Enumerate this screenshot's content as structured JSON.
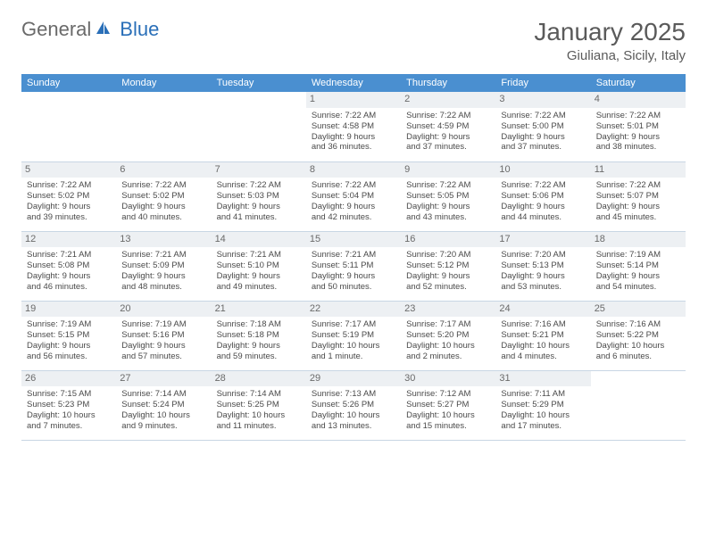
{
  "logo": {
    "part1": "General",
    "part2": "Blue"
  },
  "title": "January 2025",
  "location": "Giuliana, Sicily, Italy",
  "colors": {
    "header_bg": "#4a8fd0",
    "header_text": "#ffffff",
    "daynum_bg": "#edf0f3",
    "border": "#c8d6e4",
    "text": "#4a4a4a",
    "logo_blue": "#2a6fb8"
  },
  "weekdays": [
    "Sunday",
    "Monday",
    "Tuesday",
    "Wednesday",
    "Thursday",
    "Friday",
    "Saturday"
  ],
  "weeks": [
    [
      null,
      null,
      null,
      {
        "n": "1",
        "sr": "Sunrise: 7:22 AM",
        "ss": "Sunset: 4:58 PM",
        "d1": "Daylight: 9 hours",
        "d2": "and 36 minutes."
      },
      {
        "n": "2",
        "sr": "Sunrise: 7:22 AM",
        "ss": "Sunset: 4:59 PM",
        "d1": "Daylight: 9 hours",
        "d2": "and 37 minutes."
      },
      {
        "n": "3",
        "sr": "Sunrise: 7:22 AM",
        "ss": "Sunset: 5:00 PM",
        "d1": "Daylight: 9 hours",
        "d2": "and 37 minutes."
      },
      {
        "n": "4",
        "sr": "Sunrise: 7:22 AM",
        "ss": "Sunset: 5:01 PM",
        "d1": "Daylight: 9 hours",
        "d2": "and 38 minutes."
      }
    ],
    [
      {
        "n": "5",
        "sr": "Sunrise: 7:22 AM",
        "ss": "Sunset: 5:02 PM",
        "d1": "Daylight: 9 hours",
        "d2": "and 39 minutes."
      },
      {
        "n": "6",
        "sr": "Sunrise: 7:22 AM",
        "ss": "Sunset: 5:02 PM",
        "d1": "Daylight: 9 hours",
        "d2": "and 40 minutes."
      },
      {
        "n": "7",
        "sr": "Sunrise: 7:22 AM",
        "ss": "Sunset: 5:03 PM",
        "d1": "Daylight: 9 hours",
        "d2": "and 41 minutes."
      },
      {
        "n": "8",
        "sr": "Sunrise: 7:22 AM",
        "ss": "Sunset: 5:04 PM",
        "d1": "Daylight: 9 hours",
        "d2": "and 42 minutes."
      },
      {
        "n": "9",
        "sr": "Sunrise: 7:22 AM",
        "ss": "Sunset: 5:05 PM",
        "d1": "Daylight: 9 hours",
        "d2": "and 43 minutes."
      },
      {
        "n": "10",
        "sr": "Sunrise: 7:22 AM",
        "ss": "Sunset: 5:06 PM",
        "d1": "Daylight: 9 hours",
        "d2": "and 44 minutes."
      },
      {
        "n": "11",
        "sr": "Sunrise: 7:22 AM",
        "ss": "Sunset: 5:07 PM",
        "d1": "Daylight: 9 hours",
        "d2": "and 45 minutes."
      }
    ],
    [
      {
        "n": "12",
        "sr": "Sunrise: 7:21 AM",
        "ss": "Sunset: 5:08 PM",
        "d1": "Daylight: 9 hours",
        "d2": "and 46 minutes."
      },
      {
        "n": "13",
        "sr": "Sunrise: 7:21 AM",
        "ss": "Sunset: 5:09 PM",
        "d1": "Daylight: 9 hours",
        "d2": "and 48 minutes."
      },
      {
        "n": "14",
        "sr": "Sunrise: 7:21 AM",
        "ss": "Sunset: 5:10 PM",
        "d1": "Daylight: 9 hours",
        "d2": "and 49 minutes."
      },
      {
        "n": "15",
        "sr": "Sunrise: 7:21 AM",
        "ss": "Sunset: 5:11 PM",
        "d1": "Daylight: 9 hours",
        "d2": "and 50 minutes."
      },
      {
        "n": "16",
        "sr": "Sunrise: 7:20 AM",
        "ss": "Sunset: 5:12 PM",
        "d1": "Daylight: 9 hours",
        "d2": "and 52 minutes."
      },
      {
        "n": "17",
        "sr": "Sunrise: 7:20 AM",
        "ss": "Sunset: 5:13 PM",
        "d1": "Daylight: 9 hours",
        "d2": "and 53 minutes."
      },
      {
        "n": "18",
        "sr": "Sunrise: 7:19 AM",
        "ss": "Sunset: 5:14 PM",
        "d1": "Daylight: 9 hours",
        "d2": "and 54 minutes."
      }
    ],
    [
      {
        "n": "19",
        "sr": "Sunrise: 7:19 AM",
        "ss": "Sunset: 5:15 PM",
        "d1": "Daylight: 9 hours",
        "d2": "and 56 minutes."
      },
      {
        "n": "20",
        "sr": "Sunrise: 7:19 AM",
        "ss": "Sunset: 5:16 PM",
        "d1": "Daylight: 9 hours",
        "d2": "and 57 minutes."
      },
      {
        "n": "21",
        "sr": "Sunrise: 7:18 AM",
        "ss": "Sunset: 5:18 PM",
        "d1": "Daylight: 9 hours",
        "d2": "and 59 minutes."
      },
      {
        "n": "22",
        "sr": "Sunrise: 7:17 AM",
        "ss": "Sunset: 5:19 PM",
        "d1": "Daylight: 10 hours",
        "d2": "and 1 minute."
      },
      {
        "n": "23",
        "sr": "Sunrise: 7:17 AM",
        "ss": "Sunset: 5:20 PM",
        "d1": "Daylight: 10 hours",
        "d2": "and 2 minutes."
      },
      {
        "n": "24",
        "sr": "Sunrise: 7:16 AM",
        "ss": "Sunset: 5:21 PM",
        "d1": "Daylight: 10 hours",
        "d2": "and 4 minutes."
      },
      {
        "n": "25",
        "sr": "Sunrise: 7:16 AM",
        "ss": "Sunset: 5:22 PM",
        "d1": "Daylight: 10 hours",
        "d2": "and 6 minutes."
      }
    ],
    [
      {
        "n": "26",
        "sr": "Sunrise: 7:15 AM",
        "ss": "Sunset: 5:23 PM",
        "d1": "Daylight: 10 hours",
        "d2": "and 7 minutes."
      },
      {
        "n": "27",
        "sr": "Sunrise: 7:14 AM",
        "ss": "Sunset: 5:24 PM",
        "d1": "Daylight: 10 hours",
        "d2": "and 9 minutes."
      },
      {
        "n": "28",
        "sr": "Sunrise: 7:14 AM",
        "ss": "Sunset: 5:25 PM",
        "d1": "Daylight: 10 hours",
        "d2": "and 11 minutes."
      },
      {
        "n": "29",
        "sr": "Sunrise: 7:13 AM",
        "ss": "Sunset: 5:26 PM",
        "d1": "Daylight: 10 hours",
        "d2": "and 13 minutes."
      },
      {
        "n": "30",
        "sr": "Sunrise: 7:12 AM",
        "ss": "Sunset: 5:27 PM",
        "d1": "Daylight: 10 hours",
        "d2": "and 15 minutes."
      },
      {
        "n": "31",
        "sr": "Sunrise: 7:11 AM",
        "ss": "Sunset: 5:29 PM",
        "d1": "Daylight: 10 hours",
        "d2": "and 17 minutes."
      },
      null
    ]
  ]
}
